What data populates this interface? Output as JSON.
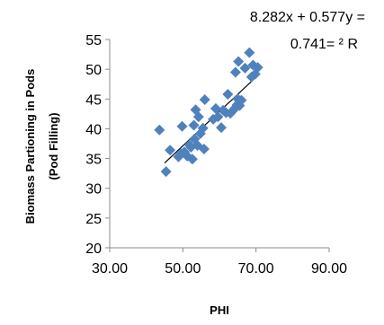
{
  "chart_data": {
    "type": "scatter",
    "xlabel": "PHI",
    "ylabel_line1": "Biomass Partioning in Pods",
    "ylabel_line2": "(Pod Filling)",
    "xlim": [
      30,
      90
    ],
    "ylim": [
      20,
      55
    ],
    "x_ticks": [
      "30.00",
      "50.00",
      "70.00",
      "90.00"
    ],
    "y_ticks": [
      "20",
      "25",
      "30",
      "35",
      "40",
      "45",
      "50",
      "55"
    ],
    "equation_line1": "8.282x + 0.577y =",
    "equation_line2": "0.741= ² R",
    "trendline": {
      "slope": 0.577,
      "intercept": 8.282,
      "x_range": [
        45,
        71
      ]
    },
    "marker_color": "#4f81bd",
    "line_color": "#000000",
    "grid": false,
    "series": [
      {
        "points": [
          [
            43.6,
            39.8
          ],
          [
            45.4,
            32.8
          ],
          [
            46.5,
            36.4
          ],
          [
            48.8,
            35.3
          ],
          [
            49.5,
            35.8
          ],
          [
            49.8,
            40.4
          ],
          [
            50.4,
            36.1
          ],
          [
            51.2,
            35.4
          ],
          [
            51.8,
            37.3
          ],
          [
            52.2,
            36.9
          ],
          [
            52.6,
            34.9
          ],
          [
            53.0,
            40.6
          ],
          [
            53.2,
            38.3
          ],
          [
            53.5,
            43.2
          ],
          [
            54.0,
            37.2
          ],
          [
            54.3,
            42.0
          ],
          [
            54.8,
            39.2
          ],
          [
            55.5,
            40.1
          ],
          [
            55.8,
            36.6
          ],
          [
            56.0,
            44.9
          ],
          [
            58.3,
            41.6
          ],
          [
            59.0,
            43.4
          ],
          [
            59.6,
            42.0
          ],
          [
            60.5,
            40.2
          ],
          [
            61.0,
            43.1
          ],
          [
            61.8,
            42.7
          ],
          [
            62.3,
            45.8
          ],
          [
            63.0,
            42.6
          ],
          [
            63.6,
            43.0
          ],
          [
            64.3,
            43.5
          ],
          [
            64.4,
            49.5
          ],
          [
            64.8,
            44.0
          ],
          [
            65.0,
            45.0
          ],
          [
            65.2,
            51.3
          ],
          [
            65.5,
            43.9
          ],
          [
            66.0,
            44.8
          ],
          [
            67.0,
            50.2
          ],
          [
            68.2,
            52.8
          ],
          [
            68.8,
            48.7
          ],
          [
            69.2,
            50.7
          ],
          [
            69.8,
            49.2
          ],
          [
            70.5,
            50.3
          ]
        ]
      }
    ]
  }
}
